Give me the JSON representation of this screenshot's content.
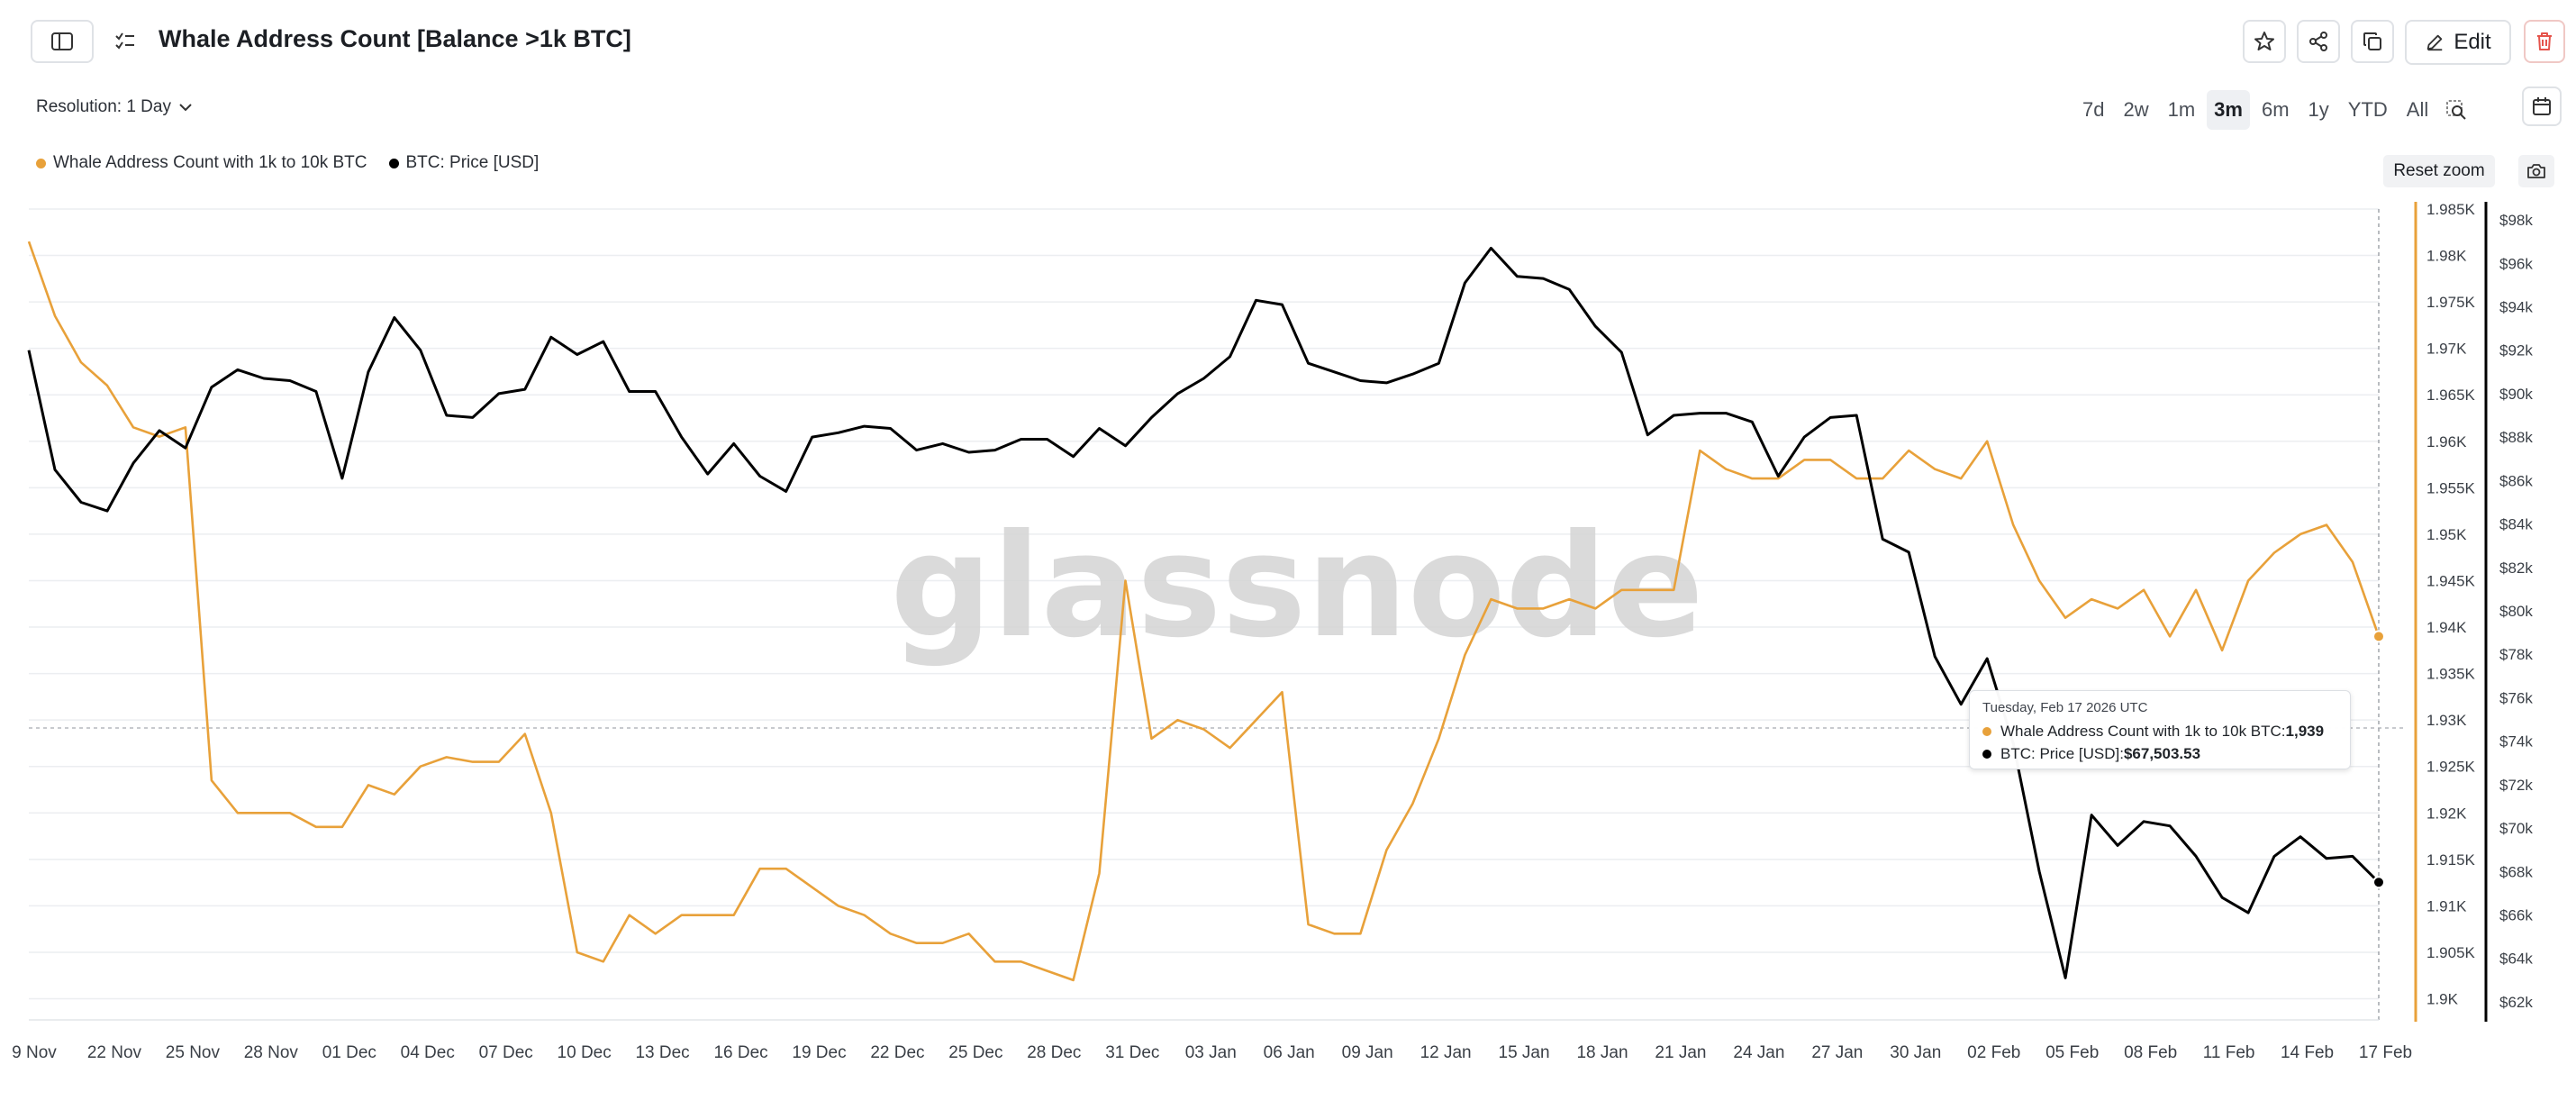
{
  "header": {
    "title": "Whale Address Count [Balance >1k BTC]",
    "edit_label": "Edit",
    "icons": [
      "sidebar-toggle-icon",
      "checklist-icon",
      "star-icon",
      "share-icon",
      "copy-icon",
      "pencil-icon",
      "trash-icon"
    ]
  },
  "toolbar": {
    "resolution_label": "Resolution: 1 Day",
    "ranges": [
      "7d",
      "2w",
      "1m",
      "3m",
      "6m",
      "1y",
      "YTD",
      "All"
    ],
    "active_range": "3m",
    "reset_zoom": "Reset zoom"
  },
  "legend": {
    "whale": "Whale Address Count with 1k to 10k BTC",
    "btc": "BTC: Price [USD]"
  },
  "watermark": "glassnode",
  "tooltip": {
    "date": "Tuesday, Feb 17 2026 UTC",
    "whale_label": "Whale Address Count with 1k to 10k BTC: ",
    "whale_value": "1,939",
    "btc_label": "BTC: Price [USD]: ",
    "btc_value": "$67,503.53"
  },
  "colors": {
    "whale": "#e8a13a",
    "btc": "#000000",
    "grid": "#eceef1",
    "delete": "#e5534b"
  },
  "chart_data": {
    "type": "line",
    "x_ticks": [
      "9 Nov",
      "22 Nov",
      "25 Nov",
      "28 Nov",
      "01 Dec",
      "04 Dec",
      "07 Dec",
      "10 Dec",
      "13 Dec",
      "16 Dec",
      "19 Dec",
      "22 Dec",
      "25 Dec",
      "28 Dec",
      "31 Dec",
      "03 Jan",
      "06 Jan",
      "09 Jan",
      "12 Jan",
      "15 Jan",
      "18 Jan",
      "21 Jan",
      "24 Jan",
      "27 Jan",
      "30 Jan",
      "02 Feb",
      "05 Feb",
      "08 Feb",
      "11 Feb",
      "14 Feb",
      "17 Feb"
    ],
    "left_axis": {
      "ticks": [
        "1.985K",
        "1.98K",
        "1.975K",
        "1.97K",
        "1.965K",
        "1.96K",
        "1.955K",
        "1.95K",
        "1.945K",
        "1.94K",
        "1.935K",
        "1.93K",
        "1.925K",
        "1.92K",
        "1.915K",
        "1.91K",
        "1.905K",
        "1.9K"
      ],
      "range": [
        1898.5,
        1985
      ]
    },
    "right_axis": {
      "ticks": [
        "$98k",
        "$96k",
        "$94k",
        "$92k",
        "$90k",
        "$88k",
        "$86k",
        "$84k",
        "$82k",
        "$80k",
        "$78k",
        "$76k",
        "$74k",
        "$72k",
        "$70k",
        "$68k",
        "$66k",
        "$64k",
        "$62k"
      ],
      "range": [
        61500,
        98500
      ]
    },
    "series": [
      {
        "name": "Whale Address Count with 1k to 10k BTC",
        "axis": "left",
        "values": [
          1981.5,
          1973.5,
          1968.5,
          1966,
          1961.5,
          1960.5,
          1961.5,
          1923.5,
          1920,
          1920,
          1920,
          1918.5,
          1918.5,
          1923,
          1922,
          1925,
          1926,
          1925.5,
          1925.5,
          1928.5,
          1920,
          1905,
          1904,
          1909,
          1907,
          1909,
          1909,
          1909,
          1914,
          1914,
          1912,
          1910,
          1909,
          1907,
          1906,
          1906,
          1907,
          1904,
          1904,
          1903,
          1902,
          1913.5,
          1945,
          1928,
          1930,
          1929,
          1927,
          1930,
          1933,
          1908,
          1907,
          1907,
          1916,
          1921,
          1928,
          1937,
          1943,
          1942,
          1942,
          1943,
          1942,
          1944,
          1944,
          1944,
          1959,
          1957,
          1956,
          1956,
          1958,
          1958,
          1956,
          1956,
          1959,
          1957,
          1956,
          1960,
          1951,
          1945,
          1941,
          1943,
          1942,
          1944,
          1939,
          1944,
          1937.5,
          1945,
          1948,
          1950,
          1951,
          1947,
          1939
        ]
      },
      {
        "name": "BTC: Price [USD]",
        "axis": "right",
        "values": [
          92000,
          86500,
          85000,
          84600,
          86800,
          88300,
          87500,
          90300,
          91100,
          90700,
          90600,
          90100,
          86100,
          91000,
          93500,
          92000,
          89000,
          88900,
          90000,
          90200,
          92600,
          91800,
          92400,
          90100,
          90100,
          88000,
          86300,
          87700,
          86200,
          85500,
          88000,
          88200,
          88500,
          88400,
          87400,
          87700,
          87300,
          87400,
          87900,
          87900,
          87100,
          88400,
          87600,
          88900,
          90000,
          90700,
          91700,
          94300,
          94100,
          91400,
          91000,
          90600,
          90500,
          90900,
          91400,
          95100,
          96700,
          95400,
          95300,
          94800,
          93100,
          91900,
          88100,
          89000,
          89100,
          89100,
          88700,
          86200,
          88000,
          88900,
          89000,
          83300,
          82700,
          77900,
          75700,
          77800,
          73900,
          68000,
          63100,
          70600,
          69200,
          70300,
          70100,
          68700,
          66800,
          66100,
          68700,
          69600,
          68600,
          68700,
          67503.53
        ]
      }
    ],
    "xlabel": "",
    "ylabel": ""
  }
}
